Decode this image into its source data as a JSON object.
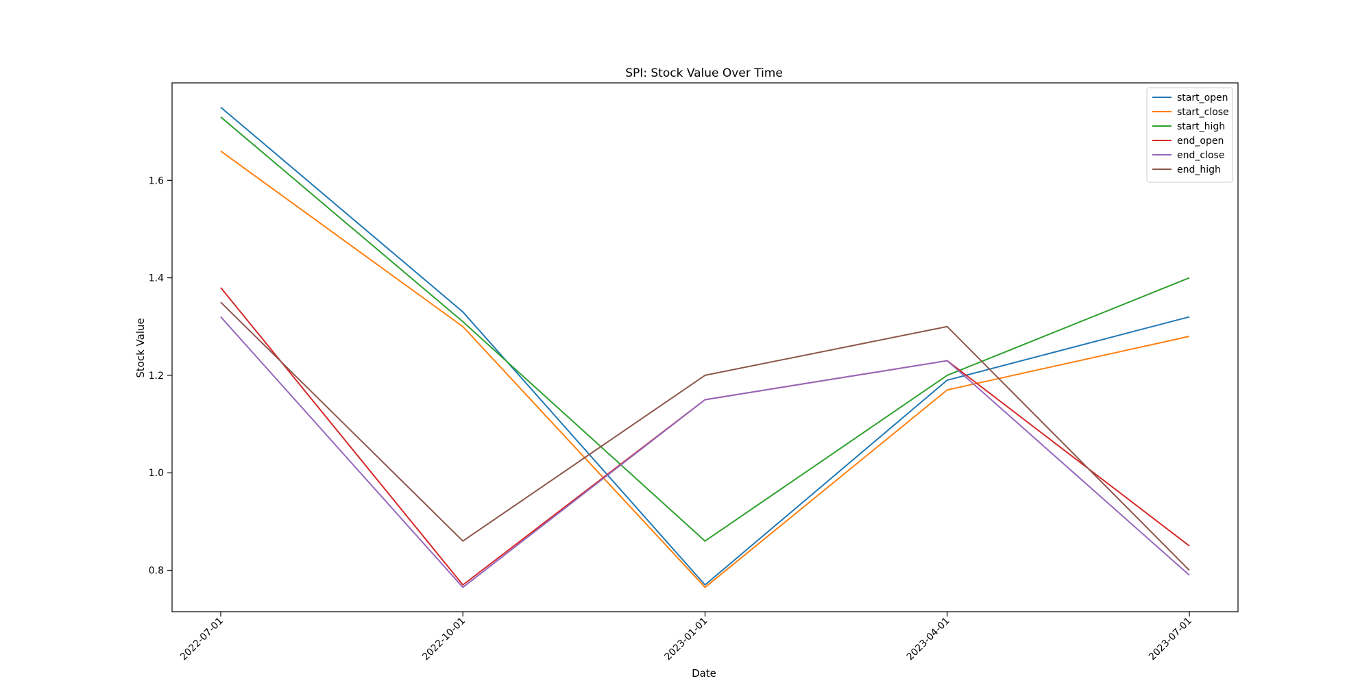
{
  "chart_data": {
    "type": "line",
    "title": "SPI: Stock Value Over Time",
    "xlabel": "Date",
    "ylabel": "Stock Value",
    "x": [
      "2022-07-01",
      "2022-10-01",
      "2023-01-01",
      "2023-04-01",
      "2023-07-01"
    ],
    "x_tick_labels": [
      "2022-07-01",
      "2022-10-01",
      "2023-01-01",
      "2023-04-01",
      "2023-07-01"
    ],
    "ylim": [
      0.715,
      1.8
    ],
    "y_ticks": [
      0.8,
      1.0,
      1.2,
      1.4,
      1.6
    ],
    "y_tick_labels": [
      "0.8",
      "1.0",
      "1.2",
      "1.4",
      "1.6"
    ],
    "grid": false,
    "legend_position": "top-right",
    "series": [
      {
        "name": "start_open",
        "color": "#1f77b4",
        "values": [
          1.75,
          1.33,
          0.77,
          1.19,
          1.32
        ]
      },
      {
        "name": "start_close",
        "color": "#ff7f0e",
        "values": [
          1.66,
          1.3,
          0.765,
          1.17,
          1.28
        ]
      },
      {
        "name": "start_high",
        "color": "#2ca02c",
        "values": [
          1.73,
          1.31,
          0.86,
          1.2,
          1.4
        ]
      },
      {
        "name": "end_open",
        "color": "#d62728",
        "values": [
          1.38,
          0.77,
          1.15,
          1.23,
          0.85
        ]
      },
      {
        "name": "end_close",
        "color": "#9467bd",
        "values": [
          1.32,
          0.765,
          1.15,
          1.23,
          0.79
        ]
      },
      {
        "name": "end_high",
        "color": "#8c564b",
        "values": [
          1.35,
          0.86,
          1.2,
          1.3,
          0.8
        ]
      }
    ]
  }
}
